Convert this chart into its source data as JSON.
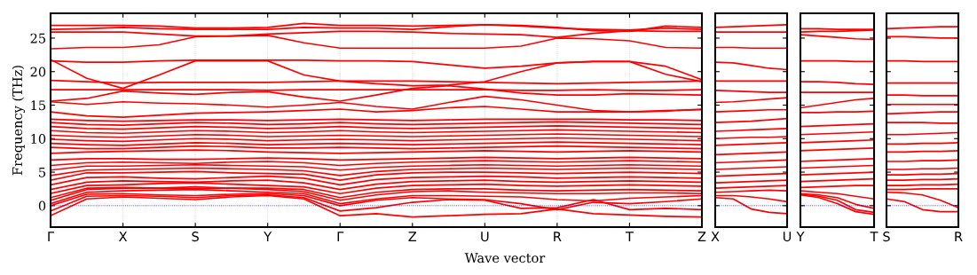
{
  "chart_data": [
    {
      "type": "line",
      "ylabel": "Frequency (THz)",
      "xlabel": "Wave vector",
      "grid": "x",
      "categories": [
        "Γ",
        null,
        "X",
        null,
        "S",
        null,
        "Y",
        null,
        "Γ",
        null,
        "Z",
        null,
        "U",
        null,
        "R",
        null,
        "T",
        null,
        "Z"
      ],
      "ylim": [
        -3.2,
        28.7
      ],
      "yticks": [
        0,
        5,
        10,
        15,
        20,
        25
      ],
      "ref_lines": [
        {
          "axis": "y",
          "value": 0,
          "color": "#0000ff",
          "line_style": "dotted"
        }
      ],
      "series": [
        {
          "color": "#ff0000",
          "values": [
            -1.5,
            1.0,
            1.3,
            1.1,
            0.9,
            1.3,
            1.5,
            1.0,
            -1.5,
            -1.2,
            -1.7,
            -1.5,
            -1.3,
            -1.2,
            -0.5,
            -1.2,
            -1.4,
            -1.6,
            -1.7
          ]
        },
        {
          "color": "#ff0000",
          "values": [
            -0.8,
            1.4,
            1.5,
            1.4,
            1.2,
            1.5,
            1.6,
            1.2,
            -0.8,
            -0.3,
            0.5,
            0.9,
            0.8,
            -0.4,
            -0.3,
            0.9,
            -0.6,
            -0.4,
            -0.6
          ]
        },
        {
          "color": "#ff0000",
          "values": [
            0.0,
            1.7,
            1.8,
            1.6,
            1.5,
            1.7,
            1.8,
            1.5,
            0.0,
            0.8,
            1.2,
            1.0,
            0.9,
            0.3,
            -0.6,
            0.5,
            0.3,
            0.6,
            1.0
          ]
        },
        {
          "color": "#ff0000",
          "values": [
            0.3,
            2.0,
            2.2,
            2.3,
            2.4,
            2.2,
            2.0,
            1.8,
            0.3,
            1.0,
            1.5,
            1.5,
            1.4,
            1.3,
            0.9,
            0.7,
            1.1,
            1.3,
            1.5
          ]
        },
        {
          "color": "#ff0000",
          "values": [
            0.8,
            2.4,
            2.6,
            2.6,
            2.8,
            2.6,
            2.4,
            2.1,
            0.8,
            1.6,
            2.1,
            2.2,
            2.0,
            1.9,
            1.8,
            1.8,
            1.9,
            1.9,
            1.8
          ]
        },
        {
          "color": "#ff0000",
          "values": [
            1.2,
            2.6,
            2.7,
            2.6,
            2.5,
            2.6,
            2.6,
            2.4,
            1.2,
            2.0,
            2.4,
            2.5,
            2.5,
            2.3,
            2.2,
            2.3,
            2.4,
            2.3,
            2.2
          ]
        },
        {
          "color": "#ff0000",
          "values": [
            1.8,
            3.0,
            3.1,
            3.3,
            3.4,
            3.2,
            3.0,
            2.8,
            1.8,
            2.6,
            3.0,
            3.1,
            3.2,
            3.0,
            2.9,
            3.0,
            3.1,
            3.0,
            2.9
          ]
        },
        {
          "color": "#ff0000",
          "values": [
            2.4,
            3.5,
            3.7,
            3.6,
            3.5,
            3.7,
            3.8,
            3.4,
            2.4,
            3.2,
            3.6,
            3.7,
            3.8,
            3.6,
            3.5,
            3.6,
            3.7,
            3.6,
            3.5
          ]
        },
        {
          "color": "#ff0000",
          "values": [
            3.1,
            4.2,
            4.3,
            4.1,
            4.0,
            4.2,
            4.4,
            4.1,
            3.1,
            3.9,
            4.2,
            4.3,
            4.4,
            4.3,
            4.1,
            4.2,
            4.3,
            4.2,
            4.1
          ]
        },
        {
          "color": "#ff0000",
          "values": [
            3.8,
            4.9,
            4.9,
            5.0,
            5.1,
            4.9,
            4.8,
            4.7,
            3.8,
            4.6,
            4.9,
            5.0,
            5.0,
            4.9,
            4.8,
            4.9,
            5.0,
            4.9,
            4.8
          ]
        },
        {
          "color": "#ff0000",
          "values": [
            4.5,
            5.3,
            5.4,
            5.5,
            5.6,
            5.5,
            5.4,
            5.2,
            4.5,
            5.1,
            5.4,
            5.5,
            5.6,
            5.5,
            5.4,
            5.5,
            5.6,
            5.5,
            5.4
          ]
        },
        {
          "color": "#ff0000",
          "values": [
            5.3,
            5.9,
            5.9,
            6.0,
            6.1,
            6.0,
            5.9,
            5.8,
            5.3,
            5.7,
            5.9,
            6.0,
            6.1,
            6.0,
            5.9,
            6.0,
            6.1,
            6.0,
            5.9
          ]
        },
        {
          "color": "#ff0000",
          "values": [
            6.0,
            6.4,
            6.5,
            6.4,
            6.3,
            6.5,
            6.6,
            6.4,
            6.0,
            6.3,
            6.5,
            6.6,
            6.7,
            6.6,
            6.5,
            6.6,
            6.7,
            6.6,
            6.5
          ]
        },
        {
          "color": "#ff0000",
          "values": [
            6.8,
            7.0,
            7.0,
            6.9,
            6.9,
            7.0,
            7.1,
            7.0,
            6.8,
            6.9,
            7.0,
            7.1,
            7.2,
            7.1,
            7.0,
            7.1,
            7.2,
            7.1,
            7.0
          ]
        },
        {
          "color": "#ff0000",
          "values": [
            7.8,
            8.0,
            8.1,
            8.2,
            8.3,
            8.2,
            8.0,
            7.9,
            7.8,
            7.9,
            8.0,
            8.1,
            8.2,
            8.1,
            8.0,
            8.1,
            8.2,
            8.1,
            8.0
          ]
        },
        {
          "color": "#ff0000",
          "values": [
            8.7,
            8.5,
            8.5,
            8.7,
            8.9,
            8.8,
            8.6,
            8.6,
            8.7,
            8.6,
            8.5,
            8.6,
            8.7,
            8.8,
            8.9,
            8.8,
            8.7,
            8.6,
            8.5
          ]
        },
        {
          "color": "#ff0000",
          "values": [
            9.3,
            9.1,
            9.0,
            9.2,
            9.4,
            9.3,
            9.1,
            9.2,
            9.3,
            9.2,
            9.1,
            9.2,
            9.3,
            9.4,
            9.5,
            9.4,
            9.3,
            9.2,
            9.1
          ]
        },
        {
          "color": "#ff0000",
          "values": [
            9.9,
            9.7,
            9.6,
            9.8,
            10.0,
            9.9,
            9.7,
            9.8,
            9.9,
            9.8,
            9.7,
            9.8,
            9.9,
            10.0,
            10.1,
            10.0,
            9.9,
            9.8,
            9.7
          ]
        },
        {
          "color": "#ff0000",
          "values": [
            10.5,
            10.3,
            10.2,
            10.4,
            10.6,
            10.5,
            10.3,
            10.4,
            10.5,
            10.4,
            10.3,
            10.4,
            10.5,
            10.6,
            10.7,
            10.6,
            10.5,
            10.4,
            10.3
          ]
        },
        {
          "color": "#ff0000",
          "values": [
            11.2,
            10.9,
            10.8,
            11.0,
            11.2,
            11.1,
            10.9,
            11.0,
            11.2,
            11.0,
            10.9,
            11.0,
            11.1,
            11.2,
            11.3,
            11.2,
            11.1,
            11.0,
            10.9
          ]
        },
        {
          "color": "#ff0000",
          "values": [
            11.8,
            11.5,
            11.4,
            11.6,
            11.8,
            11.7,
            11.5,
            11.6,
            11.8,
            11.6,
            11.5,
            11.6,
            11.7,
            11.8,
            11.9,
            11.8,
            11.7,
            11.6,
            11.5
          ]
        },
        {
          "color": "#ff0000",
          "values": [
            12.4,
            12.1,
            12.0,
            12.2,
            12.4,
            12.3,
            12.1,
            12.2,
            12.4,
            12.2,
            12.1,
            12.2,
            12.3,
            12.4,
            12.5,
            12.4,
            12.3,
            12.2,
            12.1
          ]
        },
        {
          "color": "#ff0000",
          "values": [
            12.9,
            12.7,
            12.6,
            12.7,
            12.8,
            12.8,
            12.7,
            12.8,
            12.9,
            12.8,
            12.7,
            12.8,
            12.9,
            12.9,
            12.9,
            12.9,
            12.8,
            12.8,
            12.7
          ]
        },
        {
          "color": "#ff0000",
          "values": [
            14.0,
            13.4,
            13.2,
            13.5,
            13.8,
            13.9,
            14.0,
            14.2,
            14.4,
            14.0,
            14.2,
            14.6,
            14.8,
            14.4,
            14.0,
            14.0,
            14.0,
            14.2,
            14.3
          ]
        },
        {
          "color": "#ff0000",
          "values": [
            15.5,
            15.1,
            15.5,
            15.3,
            15.2,
            15.0,
            14.7,
            15.0,
            15.4,
            14.8,
            14.4,
            15.4,
            16.3,
            15.8,
            15.0,
            14.2,
            14.0,
            14.1,
            14.4
          ]
        },
        {
          "color": "#ff0000",
          "values": [
            15.6,
            16.0,
            17.1,
            16.8,
            16.6,
            16.9,
            17.0,
            16.2,
            15.6,
            16.5,
            17.5,
            17.9,
            17.4,
            16.8,
            16.5,
            16.5,
            16.7,
            16.6,
            16.5
          ]
        },
        {
          "color": "#ff0000",
          "values": [
            17.3,
            17.3,
            17.3,
            17.3,
            17.3,
            17.3,
            17.2,
            17.3,
            17.3,
            17.3,
            17.3,
            17.3,
            17.3,
            17.2,
            17.2,
            17.3,
            17.2,
            17.2,
            17.3
          ]
        },
        {
          "color": "#ff0000",
          "values": [
            18.7,
            18.5,
            18.3,
            18.4,
            18.4,
            18.4,
            18.4,
            18.5,
            18.6,
            18.6,
            18.6,
            18.5,
            18.4,
            18.3,
            18.2,
            18.3,
            18.4,
            18.5,
            18.6
          ]
        },
        {
          "color": "#ff0000",
          "values": [
            21.8,
            19.0,
            17.5,
            19.5,
            21.6,
            21.6,
            21.6,
            19.5,
            18.6,
            18.2,
            17.9,
            18.0,
            18.5,
            20.0,
            21.3,
            21.5,
            21.5,
            19.6,
            18.5
          ]
        },
        {
          "color": "#ff0000",
          "values": [
            21.6,
            21.4,
            21.4,
            21.6,
            21.7,
            21.7,
            21.7,
            21.7,
            21.6,
            21.6,
            21.5,
            21.0,
            20.5,
            20.8,
            21.3,
            21.5,
            21.5,
            20.8,
            18.8
          ]
        },
        {
          "color": "#ff0000",
          "values": [
            23.4,
            23.6,
            23.6,
            24.0,
            25.2,
            25.3,
            25.4,
            24.3,
            23.5,
            23.5,
            23.5,
            23.5,
            23.5,
            23.8,
            25.0,
            24.9,
            24.6,
            23.6,
            23.5
          ]
        },
        {
          "color": "#ff0000",
          "values": [
            25.9,
            25.9,
            25.9,
            25.6,
            25.3,
            25.3,
            25.6,
            25.8,
            26.0,
            26.0,
            25.9,
            25.7,
            25.6,
            25.5,
            25.1,
            25.7,
            26.1,
            26.0,
            26.0
          ]
        },
        {
          "color": "#ff0000",
          "values": [
            26.3,
            26.4,
            26.6,
            26.4,
            26.3,
            26.3,
            26.3,
            26.6,
            26.5,
            26.5,
            26.3,
            26.7,
            27.0,
            26.8,
            26.5,
            26.3,
            26.2,
            26.5,
            26.3
          ]
        },
        {
          "color": "#ff0000",
          "values": [
            26.9,
            26.9,
            26.9,
            26.8,
            26.5,
            26.5,
            26.6,
            27.2,
            26.9,
            26.9,
            26.8,
            26.9,
            27.0,
            26.9,
            26.6,
            26.1,
            26.0,
            26.8,
            26.6
          ]
        }
      ]
    },
    {
      "type": "line",
      "tick_labels": "x",
      "categories": [
        "X",
        null,
        null,
        null,
        "U"
      ],
      "ylim": [
        -3.2,
        28.7
      ],
      "yticks": [
        0,
        5,
        10,
        15,
        20,
        25
      ],
      "ref_lines": [
        {
          "axis": "y",
          "value": 0,
          "color": "#0000ff",
          "line_style": "dotted"
        }
      ],
      "series": [
        {
          "color": "#ff0000",
          "values": [
            1.2,
            1.0,
            -0.5,
            -1.0,
            -1.2
          ]
        },
        {
          "color": "#ff0000",
          "values": [
            1.5,
            1.5,
            1.3,
            1.0,
            0.6
          ]
        },
        {
          "color": "#ff0000",
          "values": [
            2.0,
            2.1,
            2.2,
            2.3,
            2.2
          ]
        },
        {
          "color": "#ff0000",
          "values": [
            2.6,
            2.7,
            2.8,
            2.9,
            3.0
          ]
        },
        {
          "color": "#ff0000",
          "values": [
            3.4,
            3.5,
            3.6,
            3.7,
            3.8
          ]
        },
        {
          "color": "#ff0000",
          "values": [
            4.4,
            4.5,
            4.6,
            4.7,
            4.8
          ]
        },
        {
          "color": "#ff0000",
          "values": [
            5.4,
            5.5,
            5.6,
            5.7,
            5.8
          ]
        },
        {
          "color": "#ff0000",
          "values": [
            6.4,
            6.5,
            6.6,
            6.7,
            6.8
          ]
        },
        {
          "color": "#ff0000",
          "values": [
            7.6,
            7.7,
            7.8,
            7.9,
            8.0
          ]
        },
        {
          "color": "#ff0000",
          "values": [
            9.0,
            9.1,
            9.2,
            9.3,
            9.4
          ]
        },
        {
          "color": "#ff0000",
          "values": [
            10.0,
            10.1,
            10.2,
            10.2,
            10.3
          ]
        },
        {
          "color": "#ff0000",
          "values": [
            11.1,
            11.2,
            11.3,
            11.4,
            11.5
          ]
        },
        {
          "color": "#ff0000",
          "values": [
            12.4,
            12.5,
            12.6,
            12.8,
            13.0
          ]
        },
        {
          "color": "#ff0000",
          "values": [
            14.0,
            14.1,
            14.2,
            14.3,
            14.3
          ]
        },
        {
          "color": "#ff0000",
          "values": [
            15.4,
            15.5,
            15.7,
            15.9,
            16.1
          ]
        },
        {
          "color": "#ff0000",
          "values": [
            17.2,
            17.1,
            17.0,
            16.9,
            16.9
          ]
        },
        {
          "color": "#ff0000",
          "values": [
            18.6,
            18.6,
            18.6,
            18.6,
            18.6
          ]
        },
        {
          "color": "#ff0000",
          "values": [
            21.4,
            21.3,
            20.9,
            20.5,
            20.3
          ]
        },
        {
          "color": "#ff0000",
          "values": [
            23.6,
            23.6,
            23.5,
            23.5,
            23.5
          ]
        },
        {
          "color": "#ff0000",
          "values": [
            25.9,
            25.9,
            25.9,
            25.9,
            25.9
          ]
        },
        {
          "color": "#ff0000",
          "values": [
            26.6,
            26.7,
            26.8,
            26.9,
            27.0
          ]
        }
      ]
    },
    {
      "type": "line",
      "tick_labels": "x",
      "categories": [
        "Y",
        null,
        null,
        null,
        "T"
      ],
      "ylim": [
        -3.2,
        28.7
      ],
      "yticks": [
        0,
        5,
        10,
        15,
        20,
        25
      ],
      "ref_lines": [
        {
          "axis": "y",
          "value": 0,
          "color": "#0000ff",
          "line_style": "dotted"
        }
      ],
      "series": [
        {
          "color": "#ff0000",
          "values": [
            1.6,
            1.2,
            0.3,
            -0.9,
            -1.3
          ]
        },
        {
          "color": "#ff0000",
          "values": [
            1.7,
            1.4,
            0.8,
            -0.6,
            -1.0
          ]
        },
        {
          "color": "#ff0000",
          "values": [
            1.8,
            1.6,
            1.2,
            0.2,
            -0.4
          ]
        },
        {
          "color": "#ff0000",
          "values": [
            2.2,
            2.0,
            1.8,
            1.4,
            1.0
          ]
        },
        {
          "color": "#ff0000",
          "values": [
            2.7,
            2.8,
            2.9,
            3.0,
            3.0
          ]
        },
        {
          "color": "#ff0000",
          "values": [
            3.6,
            3.7,
            3.8,
            3.9,
            4.0
          ]
        },
        {
          "color": "#ff0000",
          "values": [
            4.6,
            4.7,
            4.8,
            4.9,
            5.0
          ]
        },
        {
          "color": "#ff0000",
          "values": [
            5.6,
            5.7,
            5.8,
            5.9,
            6.0
          ]
        },
        {
          "color": "#ff0000",
          "values": [
            6.6,
            6.7,
            6.8,
            6.9,
            7.0
          ]
        },
        {
          "color": "#ff0000",
          "values": [
            8.2,
            8.3,
            8.4,
            8.5,
            8.6
          ]
        },
        {
          "color": "#ff0000",
          "values": [
            9.4,
            9.5,
            9.6,
            9.7,
            9.8
          ]
        },
        {
          "color": "#ff0000",
          "values": [
            10.6,
            10.7,
            10.8,
            10.9,
            11.0
          ]
        },
        {
          "color": "#ff0000",
          "values": [
            11.8,
            11.9,
            12.0,
            12.1,
            12.2
          ]
        },
        {
          "color": "#ff0000",
          "values": [
            13.9,
            13.9,
            14.0,
            14.0,
            14.1
          ]
        },
        {
          "color": "#ff0000",
          "values": [
            14.6,
            15.0,
            15.4,
            15.8,
            16.0
          ]
        },
        {
          "color": "#ff0000",
          "values": [
            16.9,
            16.9,
            16.9,
            16.9,
            16.9
          ]
        },
        {
          "color": "#ff0000",
          "values": [
            18.5,
            18.5,
            18.4,
            18.2,
            18.1
          ]
        },
        {
          "color": "#ff0000",
          "values": [
            21.6,
            21.6,
            21.6,
            21.5,
            21.5
          ]
        },
        {
          "color": "#ff0000",
          "values": [
            25.5,
            25.3,
            25.1,
            24.9,
            24.8
          ]
        },
        {
          "color": "#ff0000",
          "values": [
            25.9,
            26.0,
            26.0,
            26.1,
            26.2
          ]
        },
        {
          "color": "#ff0000",
          "values": [
            26.4,
            26.4,
            26.3,
            26.3,
            26.3
          ]
        }
      ]
    },
    {
      "type": "line",
      "tick_labels": "x",
      "categories": [
        "S",
        null,
        null,
        null,
        "R"
      ],
      "ylim": [
        -3.2,
        28.7
      ],
      "yticks": [
        0,
        5,
        10,
        15,
        20,
        25
      ],
      "ref_lines": [
        {
          "axis": "y",
          "value": 0,
          "color": "#0000ff",
          "line_style": "dotted"
        }
      ],
      "series": [
        {
          "color": "#ff0000",
          "values": [
            1.0,
            0.6,
            -0.6,
            -0.9,
            -0.9
          ]
        },
        {
          "color": "#ff0000",
          "values": [
            2.0,
            1.9,
            1.6,
            0.8,
            -0.3
          ]
        },
        {
          "color": "#ff0000",
          "values": [
            2.4,
            2.4,
            2.5,
            2.5,
            2.5
          ]
        },
        {
          "color": "#ff0000",
          "values": [
            3.0,
            3.0,
            3.1,
            3.1,
            3.2
          ]
        },
        {
          "color": "#ff0000",
          "values": [
            3.8,
            3.8,
            3.9,
            3.9,
            4.0
          ]
        },
        {
          "color": "#ff0000",
          "values": [
            4.6,
            4.6,
            4.7,
            4.7,
            4.8
          ]
        },
        {
          "color": "#ff0000",
          "values": [
            5.4,
            5.4,
            5.5,
            5.5,
            5.6
          ]
        },
        {
          "color": "#ff0000",
          "values": [
            6.6,
            6.6,
            6.7,
            6.7,
            6.8
          ]
        },
        {
          "color": "#ff0000",
          "values": [
            8.0,
            8.0,
            8.1,
            8.1,
            8.2
          ]
        },
        {
          "color": "#ff0000",
          "values": [
            9.2,
            9.2,
            9.3,
            9.3,
            9.4
          ]
        },
        {
          "color": "#ff0000",
          "values": [
            10.6,
            10.6,
            10.7,
            10.8,
            10.9
          ]
        },
        {
          "color": "#ff0000",
          "values": [
            12.4,
            12.4,
            12.4,
            12.3,
            12.3
          ]
        },
        {
          "color": "#ff0000",
          "values": [
            13.7,
            13.8,
            13.9,
            14.0,
            14.0
          ]
        },
        {
          "color": "#ff0000",
          "values": [
            15.1,
            15.1,
            15.1,
            15.1,
            15.1
          ]
        },
        {
          "color": "#ff0000",
          "values": [
            16.5,
            16.5,
            16.4,
            16.4,
            16.4
          ]
        },
        {
          "color": "#ff0000",
          "values": [
            18.3,
            18.3,
            18.3,
            18.3,
            18.3
          ]
        },
        {
          "color": "#ff0000",
          "values": [
            21.6,
            21.6,
            21.5,
            21.5,
            21.5
          ]
        },
        {
          "color": "#ff0000",
          "values": [
            25.2,
            25.2,
            25.1,
            25.0,
            25.0
          ]
        },
        {
          "color": "#ff0000",
          "values": [
            26.4,
            26.5,
            26.6,
            26.7,
            26.7
          ]
        }
      ]
    }
  ]
}
